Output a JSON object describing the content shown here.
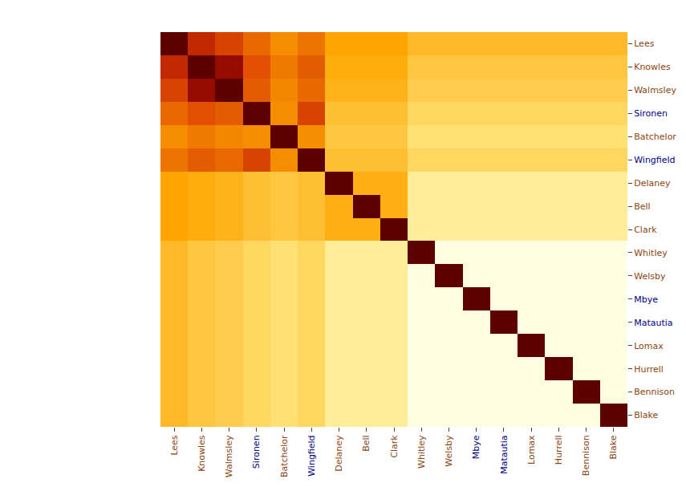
{
  "chart_data": {
    "type": "heatmap",
    "categories": [
      "Lees",
      "Knowles",
      "Walmsley",
      "Sironen",
      "Batchelor",
      "Wingfield",
      "Delaney",
      "Bell",
      "Clark",
      "Whitley",
      "Welsby",
      "Mbye",
      "Matautia",
      "Lomax",
      "Hurrell",
      "Bennison",
      "Blake"
    ],
    "label_colors": [
      "#8B4513",
      "#8B4513",
      "#8B4513",
      "#000080",
      "#8B4513",
      "#000080",
      "#8B4513",
      "#8B4513",
      "#8B4513",
      "#8B4513",
      "#8B4513",
      "#000080",
      "#000080",
      "#8B4513",
      "#8B4513",
      "#8B4513",
      "#8B4513"
    ],
    "values": [
      [
        1.0,
        0.72,
        0.65,
        0.58,
        0.52,
        0.56,
        0.48,
        0.48,
        0.48,
        0.42,
        0.42,
        0.42,
        0.42,
        0.42,
        0.42,
        0.42,
        0.42
      ],
      [
        0.72,
        1.0,
        0.85,
        0.62,
        0.55,
        0.6,
        0.46,
        0.46,
        0.46,
        0.38,
        0.38,
        0.38,
        0.38,
        0.38,
        0.38,
        0.38,
        0.38
      ],
      [
        0.65,
        0.85,
        1.0,
        0.6,
        0.53,
        0.58,
        0.44,
        0.44,
        0.44,
        0.36,
        0.36,
        0.36,
        0.36,
        0.36,
        0.36,
        0.36,
        0.36
      ],
      [
        0.58,
        0.62,
        0.6,
        1.0,
        0.52,
        0.65,
        0.4,
        0.4,
        0.4,
        0.33,
        0.33,
        0.33,
        0.33,
        0.33,
        0.33,
        0.33,
        0.33
      ],
      [
        0.52,
        0.55,
        0.53,
        0.52,
        1.0,
        0.52,
        0.38,
        0.38,
        0.38,
        0.3,
        0.3,
        0.3,
        0.3,
        0.3,
        0.3,
        0.3,
        0.3
      ],
      [
        0.56,
        0.6,
        0.58,
        0.65,
        0.52,
        1.0,
        0.4,
        0.4,
        0.4,
        0.33,
        0.33,
        0.33,
        0.33,
        0.33,
        0.33,
        0.33,
        0.33
      ],
      [
        0.48,
        0.46,
        0.44,
        0.4,
        0.38,
        0.4,
        1.0,
        0.45,
        0.45,
        0.22,
        0.22,
        0.22,
        0.22,
        0.22,
        0.22,
        0.22,
        0.22
      ],
      [
        0.48,
        0.46,
        0.44,
        0.4,
        0.38,
        0.4,
        0.45,
        1.0,
        0.45,
        0.22,
        0.22,
        0.22,
        0.22,
        0.22,
        0.22,
        0.22,
        0.22
      ],
      [
        0.48,
        0.46,
        0.44,
        0.4,
        0.38,
        0.4,
        0.45,
        0.45,
        1.0,
        0.22,
        0.22,
        0.22,
        0.22,
        0.22,
        0.22,
        0.22,
        0.22
      ],
      [
        0.42,
        0.38,
        0.36,
        0.33,
        0.3,
        0.33,
        0.22,
        0.22,
        0.22,
        1.0,
        0.04,
        0.04,
        0.04,
        0.04,
        0.04,
        0.04,
        0.04
      ],
      [
        0.42,
        0.38,
        0.36,
        0.33,
        0.3,
        0.33,
        0.22,
        0.22,
        0.22,
        0.04,
        1.0,
        0.04,
        0.04,
        0.04,
        0.04,
        0.04,
        0.04
      ],
      [
        0.42,
        0.38,
        0.36,
        0.33,
        0.3,
        0.33,
        0.22,
        0.22,
        0.22,
        0.04,
        0.04,
        1.0,
        0.04,
        0.04,
        0.04,
        0.04,
        0.04
      ],
      [
        0.42,
        0.38,
        0.36,
        0.33,
        0.3,
        0.33,
        0.22,
        0.22,
        0.22,
        0.04,
        0.04,
        0.04,
        1.0,
        0.04,
        0.04,
        0.04,
        0.04
      ],
      [
        0.42,
        0.38,
        0.36,
        0.33,
        0.3,
        0.33,
        0.22,
        0.22,
        0.22,
        0.04,
        0.04,
        0.04,
        0.04,
        1.0,
        0.04,
        0.04,
        0.04
      ],
      [
        0.42,
        0.38,
        0.36,
        0.33,
        0.3,
        0.33,
        0.22,
        0.22,
        0.22,
        0.04,
        0.04,
        0.04,
        0.04,
        0.04,
        1.0,
        0.04,
        0.04
      ],
      [
        0.42,
        0.38,
        0.36,
        0.33,
        0.3,
        0.33,
        0.22,
        0.22,
        0.22,
        0.04,
        0.04,
        0.04,
        0.04,
        0.04,
        0.04,
        1.0,
        0.04
      ],
      [
        0.42,
        0.38,
        0.36,
        0.33,
        0.3,
        0.33,
        0.22,
        0.22,
        0.22,
        0.04,
        0.04,
        0.04,
        0.04,
        0.04,
        0.04,
        0.04,
        1.0
      ]
    ],
    "zlim": [
      0,
      1
    ],
    "colorscale": [
      [
        0.0,
        "#FFFFF0"
      ],
      [
        0.1,
        "#FFFACD"
      ],
      [
        0.28,
        "#FFE680"
      ],
      [
        0.48,
        "#FFA500"
      ],
      [
        0.62,
        "#E05000"
      ],
      [
        0.78,
        "#B01000"
      ],
      [
        1.0,
        "#5C0000"
      ]
    ],
    "grid": false
  }
}
